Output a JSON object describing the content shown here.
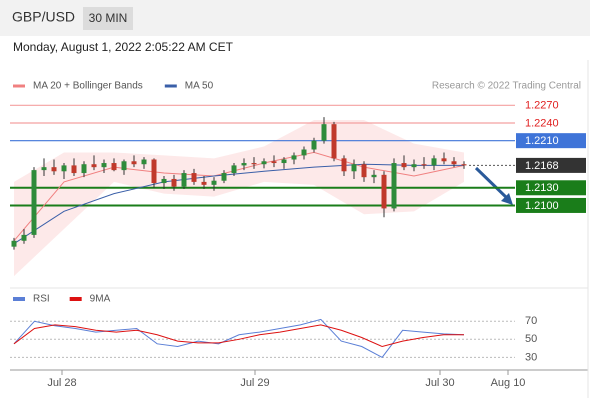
{
  "header": {
    "symbol": "GBP/USD",
    "timeframe": "30 MIN",
    "timestamp": "Monday, August 1, 2022 2:05:22 AM CET",
    "credit": "Research © 2022 Trading Central"
  },
  "chart_data": [
    {
      "type": "candlestick",
      "ylim": [
        1.197,
        1.233
      ],
      "up_color": "#2e8b3a",
      "down_color": "#c0392b",
      "candles": {
        "open": [
          1.203,
          1.204,
          1.205,
          1.216,
          1.2165,
          1.2158,
          1.2168,
          1.2155,
          1.217,
          1.2165,
          1.2172,
          1.216,
          1.2175,
          1.217,
          1.2178,
          1.2138,
          1.2145,
          1.2132,
          1.2155,
          1.214,
          1.2135,
          1.2142,
          1.2155,
          1.2168,
          1.2172,
          1.217,
          1.2175,
          1.2172,
          1.2178,
          1.2185,
          1.2195,
          1.221,
          1.2238,
          1.218,
          1.2158,
          1.217,
          1.2148,
          1.2152,
          1.2095,
          1.2172,
          1.2165,
          1.217,
          1.2168,
          1.218,
          1.2175,
          1.217
        ],
        "high": [
          1.2045,
          1.206,
          1.2165,
          1.218,
          1.2178,
          1.2172,
          1.218,
          1.2175,
          1.2185,
          1.2178,
          1.218,
          1.2178,
          1.2185,
          1.2182,
          1.218,
          1.215,
          1.2152,
          1.216,
          1.2162,
          1.215,
          1.2148,
          1.216,
          1.2172,
          1.218,
          1.2182,
          1.218,
          1.2185,
          1.2182,
          1.219,
          1.22,
          1.2215,
          1.225,
          1.2242,
          1.2185,
          1.2178,
          1.2175,
          1.216,
          1.2158,
          1.218,
          1.2185,
          1.2178,
          1.2182,
          1.2185,
          1.219,
          1.2182,
          1.2175
        ],
        "low": [
          1.2025,
          1.2035,
          1.2045,
          1.215,
          1.2152,
          1.2145,
          1.215,
          1.2148,
          1.216,
          1.2155,
          1.2158,
          1.2152,
          1.2165,
          1.2162,
          1.213,
          1.2128,
          1.2125,
          1.2128,
          1.2135,
          1.2128,
          1.2125,
          1.2138,
          1.215,
          1.216,
          1.2162,
          1.2163,
          1.2165,
          1.2162,
          1.217,
          1.2178,
          1.219,
          1.2205,
          1.2175,
          1.215,
          1.2145,
          1.214,
          1.2138,
          1.208,
          1.209,
          1.216,
          1.2158,
          1.2162,
          1.216,
          1.217,
          1.2165,
          1.2162
        ],
        "close": [
          1.204,
          1.205,
          1.216,
          1.2165,
          1.2158,
          1.2168,
          1.2155,
          1.217,
          1.2165,
          1.2172,
          1.216,
          1.2175,
          1.217,
          1.2178,
          1.2138,
          1.2145,
          1.2132,
          1.2155,
          1.214,
          1.2135,
          1.2142,
          1.2155,
          1.2168,
          1.2172,
          1.217,
          1.2175,
          1.2172,
          1.2178,
          1.2185,
          1.2195,
          1.221,
          1.2238,
          1.218,
          1.2158,
          1.217,
          1.2148,
          1.2152,
          1.2095,
          1.2172,
          1.2165,
          1.217,
          1.2168,
          1.218,
          1.2175,
          1.217,
          1.2168
        ]
      },
      "overlays": [
        {
          "name": "MA 20 + Bollinger Bands",
          "color": "#f08080",
          "band_color": "#fde3e3",
          "values": [
            1.204,
            1.214,
            1.2165,
            1.2155,
            1.215,
            1.2172,
            1.219,
            1.2165,
            1.215,
            1.2168
          ],
          "upper": [
            1.214,
            1.219,
            1.219,
            1.2185,
            1.218,
            1.22,
            1.2245,
            1.2245,
            1.2205,
            1.219
          ],
          "lower": [
            1.198,
            1.206,
            1.214,
            1.212,
            1.2115,
            1.214,
            1.2135,
            1.2085,
            1.209,
            1.214
          ]
        },
        {
          "name": "MA 50",
          "color": "#3a5fa8",
          "values": [
            1.2035,
            1.209,
            1.212,
            1.214,
            1.215,
            1.2158,
            1.2165,
            1.217,
            1.2168,
            1.2168
          ]
        }
      ],
      "levels": [
        {
          "value": 1.227,
          "label": "1.2270",
          "color": "#f4a0a0",
          "box": false
        },
        {
          "value": 1.224,
          "label": "1.2240",
          "color": "#f4a0a0",
          "box": false
        },
        {
          "value": 1.221,
          "label": "1.2210",
          "color": "#3f74d8",
          "box": true
        },
        {
          "value": 1.2168,
          "label": "1.2168",
          "color": "#333333",
          "box": true
        },
        {
          "value": 1.213,
          "label": "1.2130",
          "color": "#1a7d1a",
          "box": true
        },
        {
          "value": 1.21,
          "label": "1.2100",
          "color": "#1a7d1a",
          "box": true
        }
      ],
      "x_labels": [
        "Jul 28",
        "Jul 29",
        "Jul 30",
        "Aug 10"
      ]
    },
    {
      "type": "line",
      "ylim": [
        16,
        88
      ],
      "yticks": [
        70,
        50,
        30
      ],
      "series": [
        {
          "name": "RSI",
          "color": "#5b7fd6",
          "values": [
            45,
            70,
            65,
            62,
            58,
            60,
            62,
            45,
            42,
            48,
            45,
            55,
            58,
            62,
            66,
            72,
            48,
            42,
            30,
            60,
            58,
            56,
            55
          ]
        },
        {
          "name": "9MA",
          "color": "#dd1111",
          "values": [
            45,
            62,
            66,
            64,
            60,
            58,
            60,
            55,
            48,
            46,
            46,
            50,
            55,
            58,
            62,
            66,
            60,
            52,
            42,
            48,
            52,
            55,
            55
          ]
        }
      ]
    }
  ]
}
